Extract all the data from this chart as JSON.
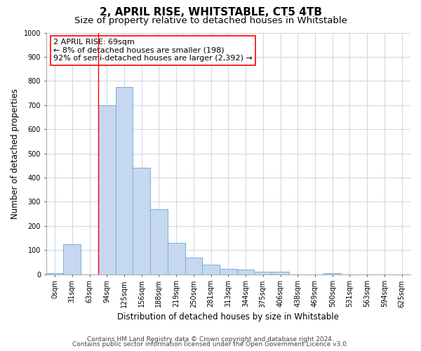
{
  "title": "2, APRIL RISE, WHITSTABLE, CT5 4TB",
  "subtitle": "Size of property relative to detached houses in Whitstable",
  "xlabel": "Distribution of detached houses by size in Whitstable",
  "ylabel": "Number of detached properties",
  "categories": [
    "0sqm",
    "31sqm",
    "63sqm",
    "94sqm",
    "125sqm",
    "156sqm",
    "188sqm",
    "219sqm",
    "250sqm",
    "281sqm",
    "313sqm",
    "344sqm",
    "375sqm",
    "406sqm",
    "438sqm",
    "469sqm",
    "500sqm",
    "531sqm",
    "563sqm",
    "594sqm",
    "625sqm"
  ],
  "bar_heights": [
    5,
    125,
    0,
    700,
    775,
    440,
    270,
    130,
    68,
    38,
    22,
    20,
    10,
    10,
    0,
    0,
    5,
    0,
    0,
    0,
    0
  ],
  "bar_color": "#c5d8f0",
  "bar_edge_color": "#7aaed6",
  "ylim": [
    0,
    1000
  ],
  "yticks": [
    0,
    100,
    200,
    300,
    400,
    500,
    600,
    700,
    800,
    900,
    1000
  ],
  "annotation_text_line1": "2 APRIL RISE: 69sqm",
  "annotation_text_line2": "← 8% of detached houses are smaller (198)",
  "annotation_text_line3": "92% of semi-detached houses are larger (2,392) →",
  "red_line_x": 2.5,
  "footer_line1": "Contains HM Land Registry data © Crown copyright and database right 2024.",
  "footer_line2": "Contains public sector information licensed under the Open Government Licence v3.0.",
  "background_color": "#ffffff",
  "grid_color": "#d0d8e8",
  "title_fontsize": 11,
  "subtitle_fontsize": 9.5,
  "axis_label_fontsize": 8.5,
  "tick_fontsize": 7,
  "annotation_fontsize": 8,
  "footer_fontsize": 6.5
}
